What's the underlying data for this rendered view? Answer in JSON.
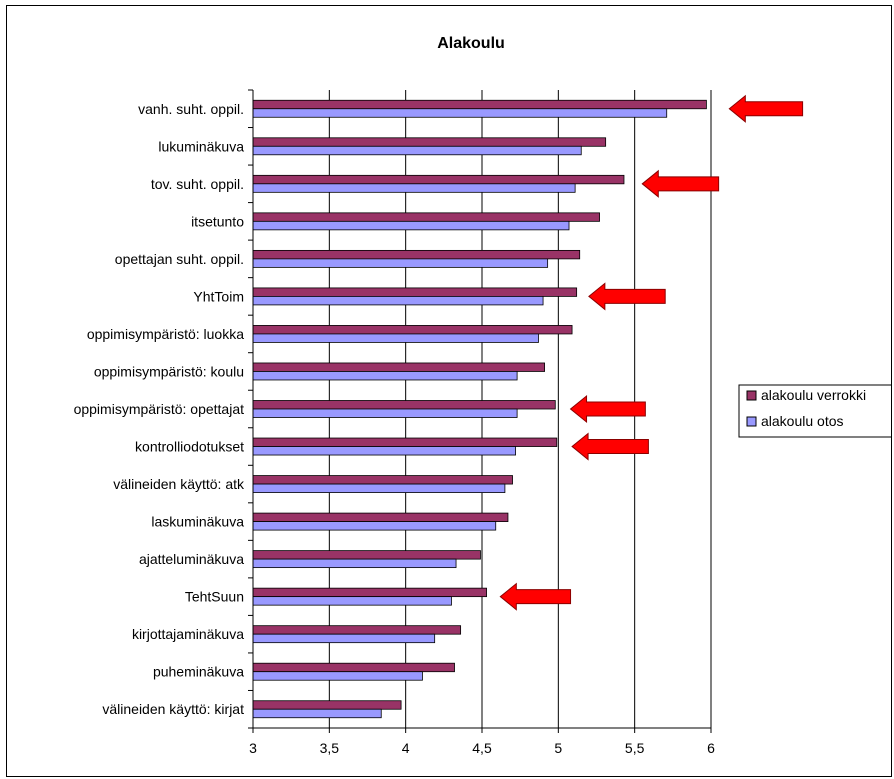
{
  "chart_data": {
    "type": "bar",
    "orientation": "horizontal",
    "title": "Alakoulu",
    "categories": [
      "vanh. suht. oppil.",
      "lukuminäkuva",
      "tov. suht. oppil.",
      "itsetunto",
      "opettajan suht. oppil.",
      "YhtToim",
      "oppimisympäristö: luokka",
      "oppimisympäristö: koulu",
      "oppimisympäristö: opettajat",
      "kontrolliodotukset",
      "välineiden käyttö: atk",
      "laskuminäkuva",
      "ajatteluminäkuva",
      "TehtSuun",
      "kirjottajaminäkuva",
      "puheminäkuva",
      "välineiden käyttö: kirjat"
    ],
    "series": [
      {
        "name": "alakoulu verrokki",
        "color": "#993366",
        "values": [
          5.97,
          5.31,
          5.43,
          5.27,
          5.14,
          5.12,
          5.09,
          4.91,
          4.98,
          4.99,
          4.7,
          4.67,
          4.49,
          4.53,
          4.36,
          4.32,
          3.97
        ]
      },
      {
        "name": "alakoulu otos",
        "color": "#9999FF",
        "values": [
          5.71,
          5.15,
          5.11,
          5.07,
          4.93,
          4.9,
          4.87,
          4.73,
          4.73,
          4.72,
          4.65,
          4.59,
          4.33,
          4.3,
          4.19,
          4.11,
          3.84
        ]
      }
    ],
    "xlim": [
      3,
      6
    ],
    "xticks": [
      3,
      3.5,
      4,
      4.5,
      5,
      5.5,
      6
    ],
    "xtick_labels": [
      "3",
      "3,5",
      "4",
      "4,5",
      "5",
      "5,5",
      "6"
    ],
    "grid": "vertical",
    "legend_position": "right",
    "arrows": [
      {
        "category": "vanh. suht. oppil.",
        "tail_x": 6.6,
        "tip_x": 6.12,
        "color": "#FF0000"
      },
      {
        "category": "tov. suht. oppil.",
        "tail_x": 6.05,
        "tip_x": 5.55,
        "color": "#FF0000"
      },
      {
        "category": "YhtToim",
        "tail_x": 5.7,
        "tip_x": 5.2,
        "color": "#FF0000"
      },
      {
        "category": "oppimisympäristö: opettajat",
        "tail_x": 5.57,
        "tip_x": 5.08,
        "color": "#FF0000"
      },
      {
        "category": "kontrolliodotukset",
        "tail_x": 5.59,
        "tip_x": 5.09,
        "color": "#FF0000"
      },
      {
        "category": "TehtSuun",
        "tail_x": 5.08,
        "tip_x": 4.62,
        "color": "#FF0000"
      }
    ]
  }
}
